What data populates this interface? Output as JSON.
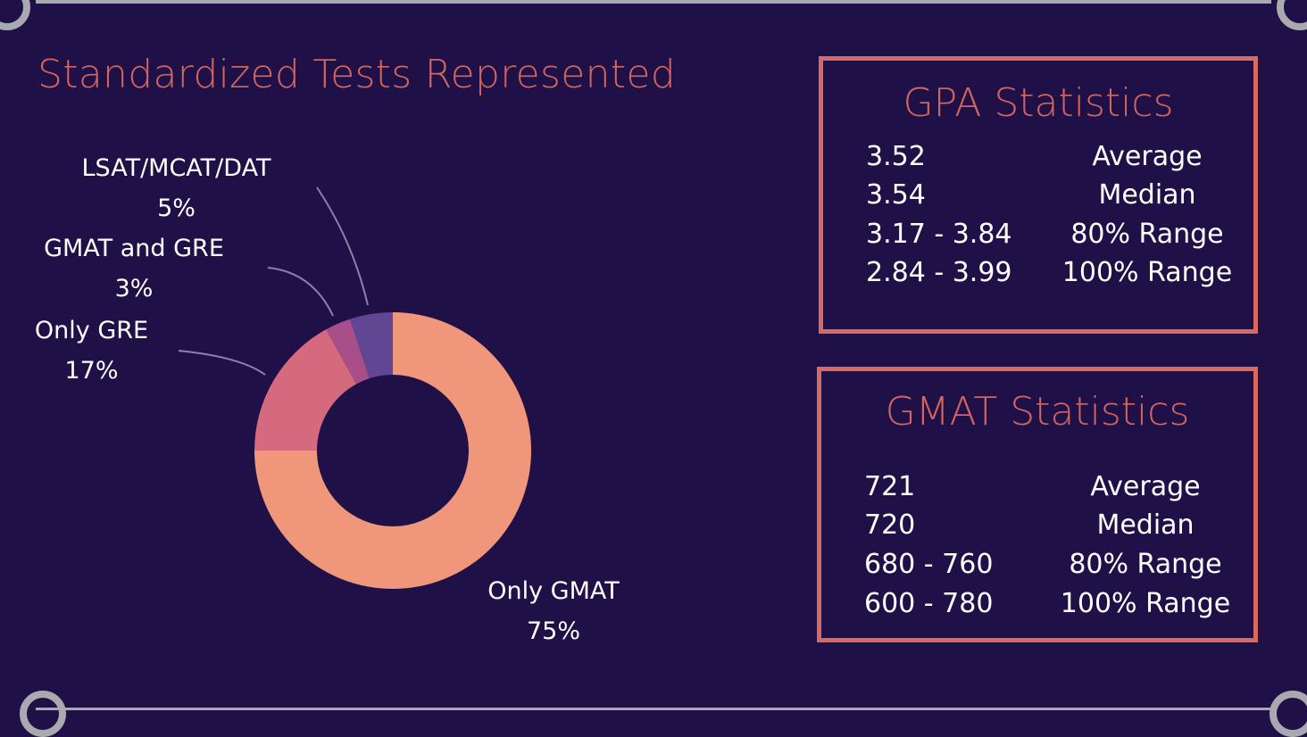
{
  "colors": {
    "background": "#1f1147",
    "accent": "#d86a62",
    "frame": "#a9a9b0"
  },
  "chart_data": {
    "type": "pie",
    "variant": "donut",
    "title": "Standardized Tests Represented",
    "slices": [
      {
        "label": "Only GMAT",
        "value": 75,
        "display": "75%",
        "color": "#f0967a"
      },
      {
        "label": "Only GRE",
        "value": 17,
        "display": "17%",
        "color": "#d5697e"
      },
      {
        "label": "GMAT and GRE",
        "value": 3,
        "display": "3%",
        "color": "#a84f8a"
      },
      {
        "label": "LSAT/MCAT/DAT",
        "value": 5,
        "display": "5%",
        "color": "#614694"
      }
    ]
  },
  "gpa": {
    "title": "GPA Statistics",
    "rows": [
      {
        "value": "3.52",
        "label": "Average"
      },
      {
        "value": "3.54",
        "label": "Median"
      },
      {
        "value": "3.17 - 3.84",
        "label": "80% Range"
      },
      {
        "value": "2.84 - 3.99",
        "label": "100% Range"
      }
    ]
  },
  "gmat": {
    "title": "GMAT Statistics",
    "rows": [
      {
        "value": "721",
        "label": "Average"
      },
      {
        "value": "720",
        "label": "Median"
      },
      {
        "value": "680 - 760",
        "label": "80% Range"
      },
      {
        "value": "600 - 780",
        "label": "100% Range"
      }
    ]
  }
}
